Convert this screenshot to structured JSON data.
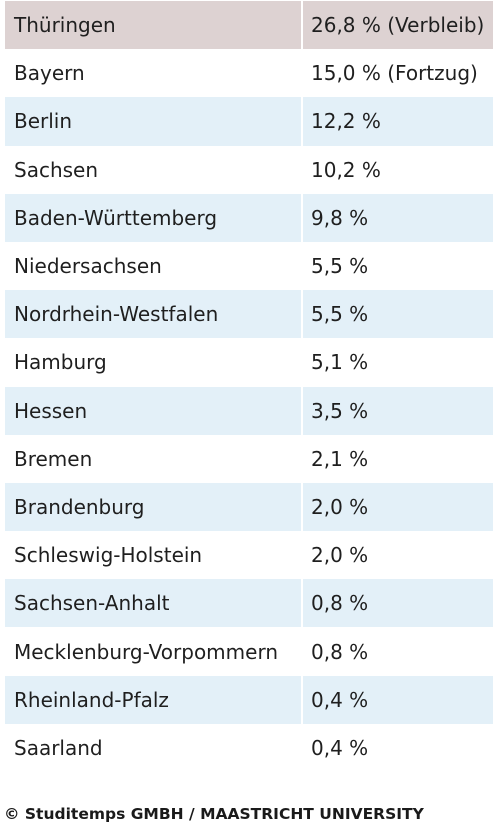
{
  "colors": {
    "header_row": "#ddd2d2",
    "stripe_row": "#e3f0f8",
    "plain_row": "#ffffff"
  },
  "rows": [
    {
      "state": "Thüringen",
      "value": "26,8 % (Verbleib)"
    },
    {
      "state": "Bayern",
      "value": "15,0 % (Fortzug)"
    },
    {
      "state": "Berlin",
      "value": "12,2 %"
    },
    {
      "state": "Sachsen",
      "value": "10,2 %"
    },
    {
      "state": "Baden-Württemberg",
      "value": "9,8 %"
    },
    {
      "state": "Niedersachsen",
      "value": "5,5 %"
    },
    {
      "state": "Nordrhein-Westfalen",
      "value": "5,5 %"
    },
    {
      "state": "Hamburg",
      "value": "5,1 %"
    },
    {
      "state": "Hessen",
      "value": "3,5 %"
    },
    {
      "state": "Bremen",
      "value": "2,1 %"
    },
    {
      "state": "Brandenburg",
      "value": "2,0 %"
    },
    {
      "state": "Schleswig-Holstein",
      "value": "2,0 %"
    },
    {
      "state": "Sachsen-Anhalt",
      "value": "0,8 %"
    },
    {
      "state": "Mecklenburg-Vorpommern",
      "value": "0,8 %"
    },
    {
      "state": "Rheinland-Pfalz",
      "value": "0,4 %"
    },
    {
      "state": "Saarland",
      "value": "0,4 %"
    }
  ],
  "credit": "© Studitemps GMBH / MAASTRICHT UNIVERSITY"
}
